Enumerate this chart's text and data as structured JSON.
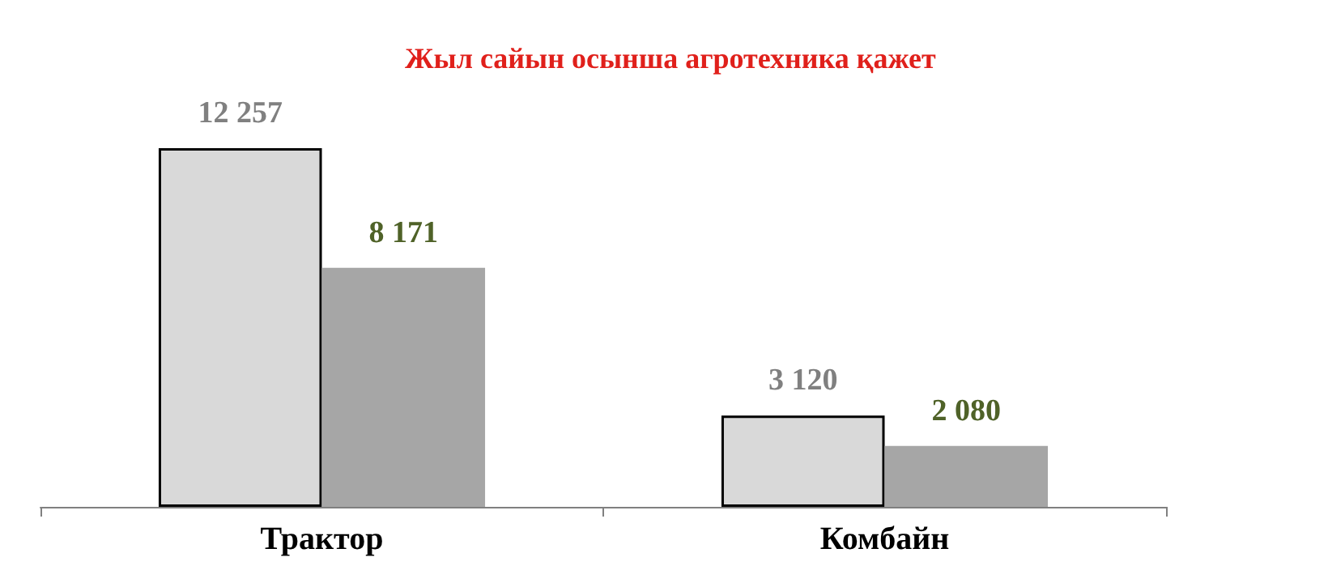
{
  "chart_data": {
    "type": "bar",
    "title": "Жыл сайын осынша агротехника қажет",
    "categories": [
      "Трактор",
      "Комбайн"
    ],
    "series": [
      {
        "color": "#d9d9d9",
        "values": [
          12257,
          3120
        ],
        "value_labels": [
          "12 257",
          "3 120"
        ]
      },
      {
        "color": "#a6a6a6",
        "values": [
          8171,
          2080
        ],
        "value_labels": [
          "8 171",
          "2 080"
        ]
      }
    ]
  }
}
